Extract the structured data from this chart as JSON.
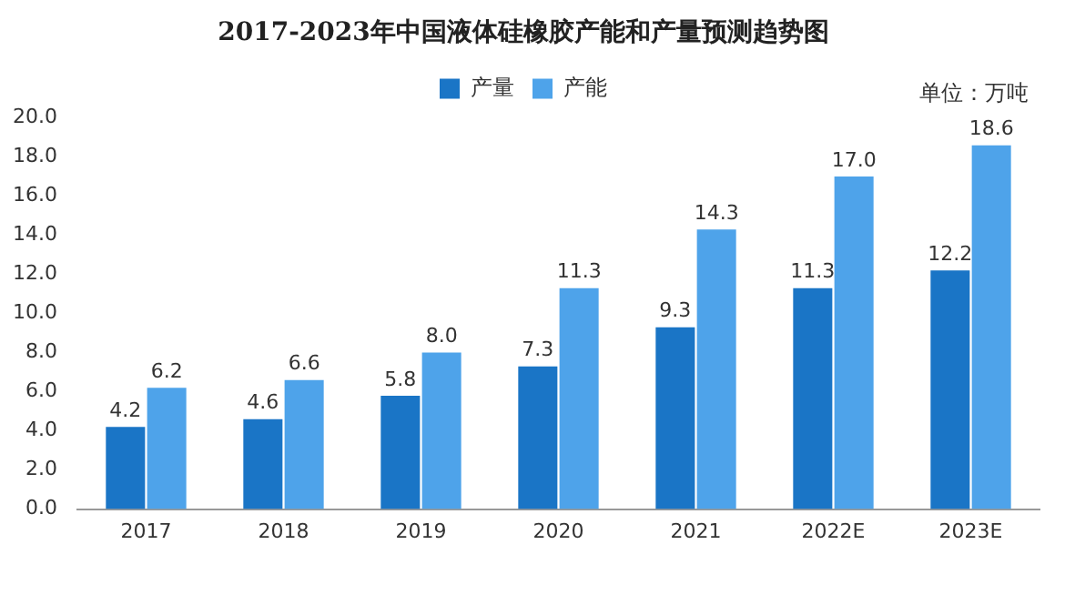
{
  "chart_data": {
    "type": "bar",
    "title": "2017-2023年中国液体硅橡胶产能和产量预测趋势图",
    "categories": [
      "2017",
      "2018",
      "2019",
      "2020",
      "2021",
      "2022E",
      "2023E"
    ],
    "series": [
      {
        "name": "产量",
        "color": "#1a75c6",
        "values": [
          4.2,
          4.6,
          5.8,
          7.3,
          9.3,
          11.3,
          12.2
        ],
        "value_labels": [
          "4.2",
          "4.6",
          "5.8",
          "7.3",
          "9.3",
          "11.3",
          "12.2"
        ]
      },
      {
        "name": "产能",
        "color": "#4ea3ea",
        "values": [
          6.2,
          6.6,
          8.0,
          11.3,
          14.3,
          17.0,
          18.6
        ],
        "value_labels": [
          "6.2",
          "6.6",
          "8.0",
          "11.3",
          "14.3",
          "17.0",
          "18.6"
        ]
      }
    ],
    "ylim": [
      0,
      20
    ],
    "yticks": [
      {
        "value": 0,
        "label": "0.0"
      },
      {
        "value": 2,
        "label": "2.0"
      },
      {
        "value": 4,
        "label": "4.0"
      },
      {
        "value": 6,
        "label": "6.0"
      },
      {
        "value": 8,
        "label": "8.0"
      },
      {
        "value": 10,
        "label": "10.0"
      },
      {
        "value": 12,
        "label": "12.0"
      },
      {
        "value": 14,
        "label": "14.0"
      },
      {
        "value": 16,
        "label": "16.0"
      },
      {
        "value": 18,
        "label": "18.0"
      },
      {
        "value": 20,
        "label": "20.0"
      }
    ],
    "grid": false,
    "legend": "top",
    "annotations": [
      "单位：万吨"
    ]
  }
}
